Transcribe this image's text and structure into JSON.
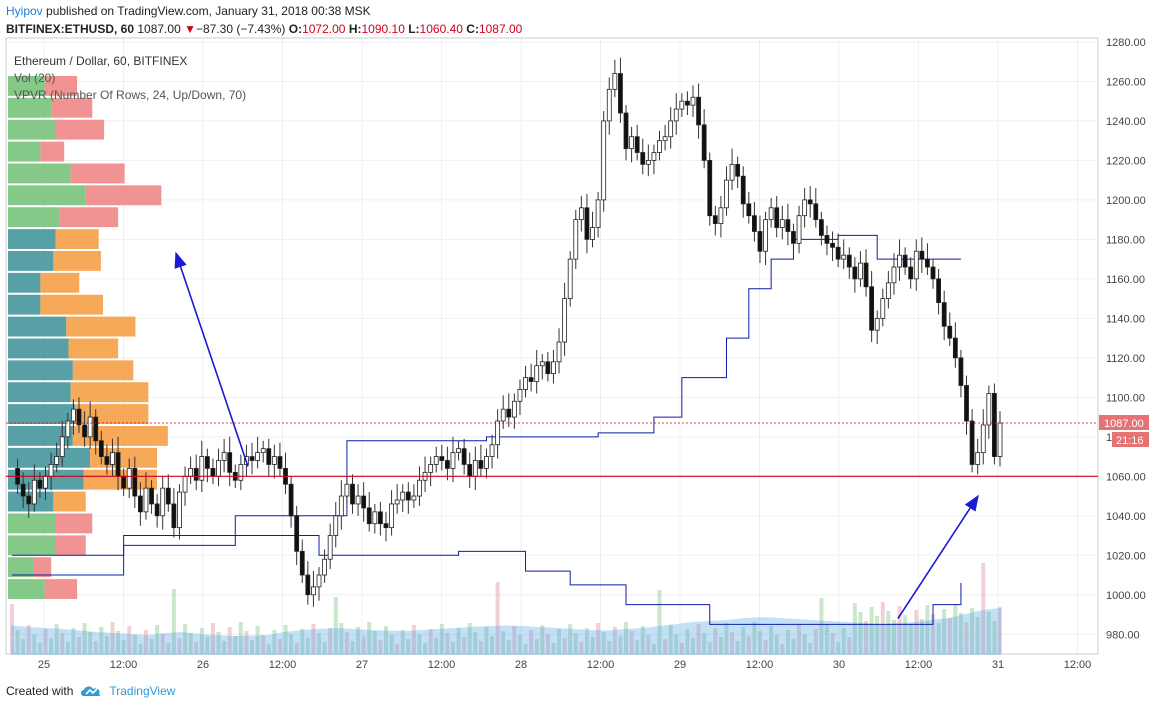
{
  "header": {
    "author": "Hyipov",
    "published_text": " published on TradingView.com, January 31, 2018 00:38 MSK",
    "symbol": "BITFINEX:ETHUSD, 60",
    "last": "1087.00",
    "change_arrow": "▼",
    "change": "−87.30 (−7.43%)",
    "o_label": "O:",
    "o_value": "1072.00",
    "h_label": "H:",
    "h_value": "1090.10",
    "l_label": "L:",
    "l_value": "1060.40",
    "c_label": "C:",
    "c_value": "1087.00"
  },
  "legend": {
    "title": "Ethereum / Dollar, 60, BITFINEX",
    "vol": "Vol (20)",
    "vpvr": "VPVR (Number Of Rows, 24, Up/Down, 70)"
  },
  "footer": {
    "created_with": "Created with",
    "brand": "TradingView",
    "logo_icon": "cloud-logo-icon"
  },
  "colors": {
    "up": "#ffffff",
    "down": "#111111",
    "hvn_up": "#6fbf73",
    "hvn_down": "#f08080",
    "va_up": "#3a8f96",
    "va_down": "#f59a3c",
    "level_line": "#d0021b",
    "channel": "#0b1fa8",
    "vol_ma": "#5aa7e6",
    "arrow": "#1a1ad6"
  },
  "chart_data": {
    "type": "candlestick",
    "symbol": "ETHUSD",
    "timeframe": "60",
    "y_ticks": [
      980,
      1000,
      1020,
      1040,
      1060,
      1080,
      1100,
      1120,
      1140,
      1160,
      1180,
      1200,
      1220,
      1240,
      1260,
      1280
    ],
    "y_tick_labels": [
      "980.00",
      "1000.00",
      "1020.00",
      "1040.00",
      "1060.00",
      "1080.00",
      "1100.00",
      "1120.00",
      "1140.00",
      "1160.00",
      "1180.00",
      "1200.00",
      "1220.00",
      "1240.00",
      "1260.00",
      "1280.00"
    ],
    "ylim": [
      970,
      1282
    ],
    "x_ticks": [
      {
        "label": "25",
        "t": 0.0
      },
      {
        "label": "12:00",
        "t": 0.5
      },
      {
        "label": "26",
        "t": 1.0
      },
      {
        "label": "12:00",
        "t": 1.5
      },
      {
        "label": "27",
        "t": 2.0
      },
      {
        "label": "12:00",
        "t": 2.5
      },
      {
        "label": "28",
        "t": 3.0
      },
      {
        "label": "12:00",
        "t": 3.5
      },
      {
        "label": "29",
        "t": 4.0
      },
      {
        "label": "12:00",
        "t": 4.5
      },
      {
        "label": "30",
        "t": 5.0
      },
      {
        "label": "12:00",
        "t": 5.5
      },
      {
        "label": "31",
        "t": 6.0
      },
      {
        "label": "12:00",
        "t": 6.5
      }
    ],
    "price_tag": "1087.00",
    "countdown_tag": "21:16",
    "support_level": 1060,
    "prices": [
      1064,
      1056,
      1050,
      1046,
      1058,
      1054,
      1060,
      1066,
      1070,
      1080,
      1088,
      1094,
      1086,
      1080,
      1090,
      1078,
      1070,
      1066,
      1072,
      1060,
      1054,
      1064,
      1050,
      1042,
      1054,
      1046,
      1040,
      1054,
      1046,
      1034,
      1052,
      1060,
      1064,
      1058,
      1070,
      1064,
      1060,
      1068,
      1072,
      1062,
      1058,
      1066,
      1070,
      1068,
      1072,
      1074,
      1066,
      1070,
      1064,
      1056,
      1040,
      1022,
      1010,
      1000,
      1004,
      1010,
      1018,
      1030,
      1040,
      1050,
      1056,
      1046,
      1050,
      1044,
      1036,
      1042,
      1036,
      1034,
      1046,
      1048,
      1052,
      1048,
      1050,
      1058,
      1062,
      1066,
      1070,
      1068,
      1064,
      1072,
      1074,
      1066,
      1060,
      1068,
      1064,
      1070,
      1076,
      1088,
      1094,
      1090,
      1098,
      1104,
      1110,
      1108,
      1116,
      1118,
      1112,
      1118,
      1128,
      1150,
      1170,
      1190,
      1196,
      1180,
      1186,
      1200,
      1240,
      1256,
      1264,
      1244,
      1226,
      1232,
      1224,
      1218,
      1220,
      1224,
      1230,
      1232,
      1240,
      1246,
      1250,
      1248,
      1252,
      1238,
      1220,
      1192,
      1188,
      1196,
      1210,
      1218,
      1212,
      1198,
      1192,
      1184,
      1174,
      1190,
      1196,
      1186,
      1190,
      1184,
      1178,
      1192,
      1200,
      1198,
      1190,
      1182,
      1178,
      1176,
      1170,
      1172,
      1166,
      1160,
      1168,
      1156,
      1134,
      1140,
      1150,
      1158,
      1166,
      1172,
      1166,
      1160,
      1174,
      1170,
      1166,
      1160,
      1148,
      1136,
      1130,
      1120,
      1106,
      1088,
      1066,
      1072,
      1086,
      1102,
      1070,
      1087
    ],
    "vpvr_rows": [
      {
        "up": 0.34,
        "down": 0.3
      },
      {
        "up": 0.4,
        "down": 0.38
      },
      {
        "up": 0.44,
        "down": 0.45
      },
      {
        "up": 0.3,
        "down": 0.22
      },
      {
        "up": 0.58,
        "down": 0.5
      },
      {
        "up": 0.72,
        "down": 0.7
      },
      {
        "up": 0.48,
        "down": 0.54
      },
      {
        "up": 0.44,
        "down": 0.4
      },
      {
        "up": 0.42,
        "down": 0.44
      },
      {
        "up": 0.3,
        "down": 0.36
      },
      {
        "up": 0.3,
        "down": 0.58
      },
      {
        "up": 0.54,
        "down": 0.64
      },
      {
        "up": 0.56,
        "down": 0.46
      },
      {
        "up": 0.6,
        "down": 0.56
      },
      {
        "up": 0.58,
        "down": 0.72
      },
      {
        "up": 0.62,
        "down": 0.68
      },
      {
        "up": 0.6,
        "down": 0.88
      },
      {
        "up": 0.76,
        "down": 0.62
      },
      {
        "up": 0.7,
        "down": 0.68
      },
      {
        "up": 0.42,
        "down": 0.3
      },
      {
        "up": 0.44,
        "down": 0.34
      },
      {
        "up": 0.44,
        "down": 0.28
      },
      {
        "up": 0.24,
        "down": 0.16
      },
      {
        "up": 0.34,
        "down": 0.3
      }
    ],
    "volume_ma": [
      0.55,
      0.52,
      0.5,
      0.48,
      0.45,
      0.42,
      0.4,
      0.38,
      0.36,
      0.4,
      0.42,
      0.38,
      0.36,
      0.34,
      0.35,
      0.36,
      0.42,
      0.46,
      0.48,
      0.5,
      0.48,
      0.46,
      0.45,
      0.44,
      0.46,
      0.48,
      0.5,
      0.52,
      0.54,
      0.55,
      0.54,
      0.52,
      0.5,
      0.48,
      0.46,
      0.45,
      0.48,
      0.5,
      0.54,
      0.58,
      0.62,
      0.64,
      0.66,
      0.7,
      0.72,
      0.7,
      0.68,
      0.66,
      0.64,
      0.62,
      0.6,
      0.58,
      0.6,
      0.62,
      0.66,
      0.7,
      0.78,
      0.86,
      0.9
    ]
  }
}
